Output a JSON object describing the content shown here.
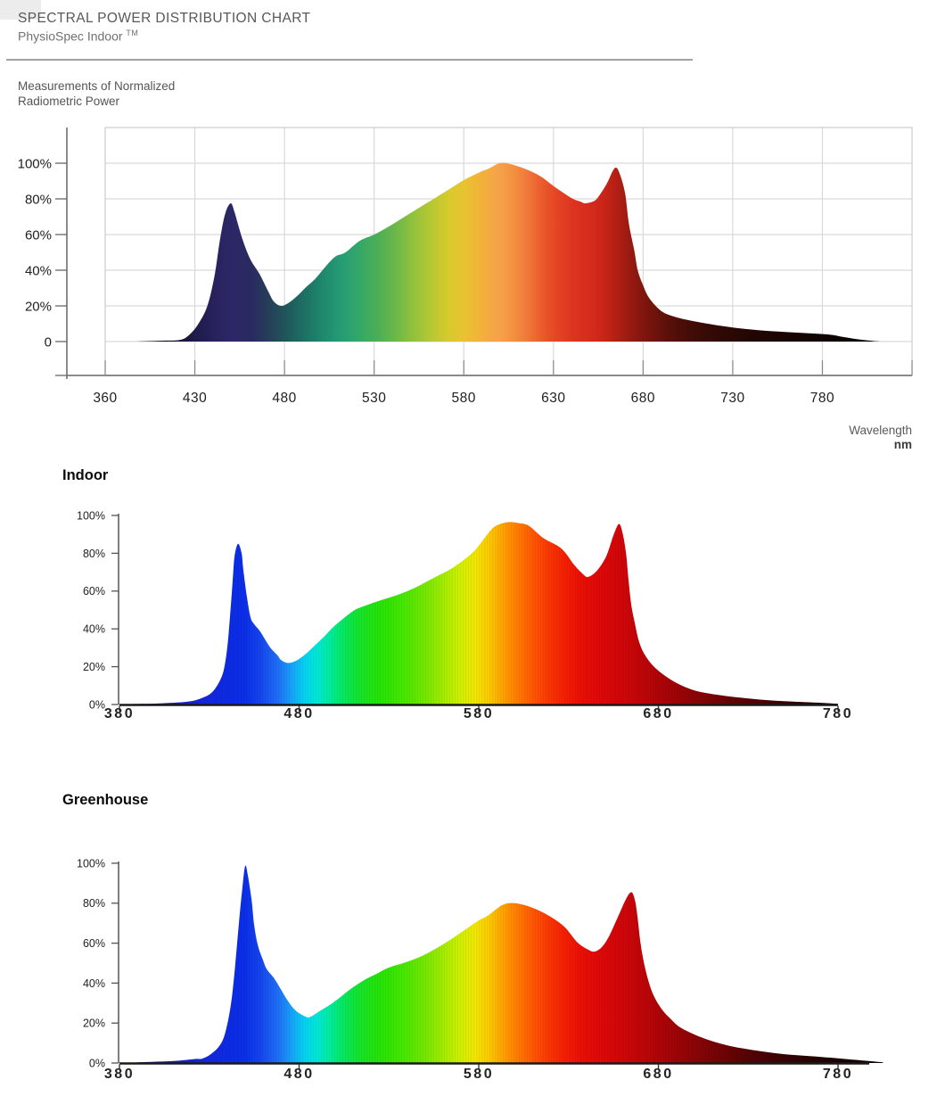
{
  "header": {
    "title": "SPECTRAL POWER DISTRIBUTION CHART",
    "subtitle": "PhysioSpec Indoor",
    "trademark": "TM",
    "note_line1": "Measurements of Normalized",
    "note_line2": "Radiometric Power",
    "wavelength_label": "Wavelength",
    "wavelength_unit": "nm"
  },
  "gradients": {
    "muted": [
      [
        384,
        "#0b0a10"
      ],
      [
        400,
        "#100e20"
      ],
      [
        418,
        "#171434"
      ],
      [
        432,
        "#201c4e"
      ],
      [
        445,
        "#2a2562"
      ],
      [
        452,
        "#2c2766"
      ],
      [
        462,
        "#292b60"
      ],
      [
        472,
        "#254058"
      ],
      [
        482,
        "#1f5a5c"
      ],
      [
        492,
        "#1d7264"
      ],
      [
        502,
        "#1f8a6e"
      ],
      [
        512,
        "#279c74"
      ],
      [
        522,
        "#35a867"
      ],
      [
        532,
        "#4cae56"
      ],
      [
        542,
        "#6cb848"
      ],
      [
        552,
        "#92c23c"
      ],
      [
        562,
        "#b8c832"
      ],
      [
        572,
        "#d8ca2e"
      ],
      [
        580,
        "#e8c32f"
      ],
      [
        590,
        "#f2b13a"
      ],
      [
        600,
        "#f6a14c"
      ],
      [
        608,
        "#f39040"
      ],
      [
        616,
        "#f0763a"
      ],
      [
        624,
        "#ea5a2c"
      ],
      [
        632,
        "#e44424"
      ],
      [
        642,
        "#dc3220"
      ],
      [
        652,
        "#d42a1c"
      ],
      [
        660,
        "#c42317"
      ],
      [
        668,
        "#a81d12"
      ],
      [
        676,
        "#8c1810"
      ],
      [
        684,
        "#74140c"
      ],
      [
        694,
        "#5a100a"
      ],
      [
        706,
        "#440c07"
      ],
      [
        720,
        "#320905"
      ],
      [
        736,
        "#250704"
      ],
      [
        754,
        "#1b0503"
      ],
      [
        775,
        "#120402"
      ],
      [
        795,
        "#0d0302"
      ],
      [
        812,
        "#0a0202"
      ]
    ],
    "vivid": [
      [
        380,
        "#150b42"
      ],
      [
        395,
        "#1b1488"
      ],
      [
        410,
        "#1a1db4"
      ],
      [
        425,
        "#1526d8"
      ],
      [
        440,
        "#0d2ae4"
      ],
      [
        450,
        "#0b2fe8"
      ],
      [
        458,
        "#1444ee"
      ],
      [
        468,
        "#1e6ef6"
      ],
      [
        476,
        "#16a4fa"
      ],
      [
        483,
        "#06d2f2"
      ],
      [
        490,
        "#00e8d8"
      ],
      [
        497,
        "#00ec9e"
      ],
      [
        505,
        "#06e85e"
      ],
      [
        514,
        "#16e428"
      ],
      [
        525,
        "#26e406"
      ],
      [
        538,
        "#46e800"
      ],
      [
        550,
        "#74e800"
      ],
      [
        560,
        "#a2ec00"
      ],
      [
        570,
        "#d2f000"
      ],
      [
        578,
        "#f2e600"
      ],
      [
        586,
        "#fdc800"
      ],
      [
        594,
        "#ff9f00"
      ],
      [
        602,
        "#ff7a00"
      ],
      [
        610,
        "#ff5802"
      ],
      [
        618,
        "#fb3a02"
      ],
      [
        627,
        "#f52104"
      ],
      [
        636,
        "#ec1006"
      ],
      [
        648,
        "#de0808"
      ],
      [
        660,
        "#cf0609"
      ],
      [
        672,
        "#bc0508"
      ],
      [
        685,
        "#a60407"
      ],
      [
        700,
        "#8c0406"
      ],
      [
        715,
        "#700305"
      ],
      [
        732,
        "#520204"
      ],
      [
        750,
        "#380203"
      ],
      [
        768,
        "#240102"
      ],
      [
        790,
        "#120101"
      ],
      [
        810,
        "#0c0101"
      ]
    ]
  },
  "chart_data": [
    {
      "id": "main",
      "type": "area",
      "title": "",
      "ylabel": "Normalized Radiometric Power (%)",
      "xlabel": "Wavelength nm",
      "grid": true,
      "ylim": [
        0,
        120
      ],
      "gradient": "muted",
      "y_ticks": [
        {
          "label": "100%",
          "value": 100
        },
        {
          "label": "80%",
          "value": 80
        },
        {
          "label": "60%",
          "value": 60
        },
        {
          "label": "40%",
          "value": 40
        },
        {
          "label": "20%",
          "value": 20
        },
        {
          "label": "0",
          "value": 0
        }
      ],
      "x_ticks": [
        {
          "label": "360",
          "nm": 360
        },
        {
          "label": "430",
          "nm": 430
        },
        {
          "label": "480",
          "nm": 480
        },
        {
          "label": "530",
          "nm": 530
        },
        {
          "label": "580",
          "nm": 580
        },
        {
          "label": "630",
          "nm": 630
        },
        {
          "label": "680",
          "nm": 680
        },
        {
          "label": "730",
          "nm": 730
        },
        {
          "label": "780",
          "nm": 780
        }
      ],
      "points": [
        [
          384,
          0
        ],
        [
          405,
          0.5
        ],
        [
          419,
          1
        ],
        [
          426,
          4
        ],
        [
          432,
          10
        ],
        [
          437,
          20
        ],
        [
          441,
          37
        ],
        [
          444,
          57
        ],
        [
          447,
          72
        ],
        [
          450,
          77.5
        ],
        [
          452,
          73
        ],
        [
          454,
          66
        ],
        [
          457,
          56
        ],
        [
          461,
          46
        ],
        [
          466,
          38
        ],
        [
          471,
          28
        ],
        [
          474,
          22.5
        ],
        [
          478,
          20
        ],
        [
          482,
          21.5
        ],
        [
          487,
          25.5
        ],
        [
          492,
          30.5
        ],
        [
          497,
          35
        ],
        [
          502,
          41
        ],
        [
          506,
          45.5
        ],
        [
          509,
          48
        ],
        [
          514,
          50
        ],
        [
          522,
          56.5
        ],
        [
          530,
          60
        ],
        [
          539,
          65
        ],
        [
          547,
          70
        ],
        [
          555,
          75
        ],
        [
          564,
          80.5
        ],
        [
          572,
          85.5
        ],
        [
          580,
          90.5
        ],
        [
          589,
          95
        ],
        [
          594,
          97
        ],
        [
          600,
          100
        ],
        [
          606,
          99.5
        ],
        [
          615,
          96.5
        ],
        [
          623,
          92.5
        ],
        [
          631,
          86.5
        ],
        [
          640,
          80.5
        ],
        [
          645,
          78.5
        ],
        [
          648,
          77.5
        ],
        [
          653,
          79
        ],
        [
          656,
          82.5
        ],
        [
          660,
          89
        ],
        [
          663,
          95.5
        ],
        [
          665,
          97.5
        ],
        [
          667,
          94
        ],
        [
          670,
          83
        ],
        [
          672,
          66.5
        ],
        [
          675,
          51.5
        ],
        [
          677,
          40
        ],
        [
          680,
          31.5
        ],
        [
          683,
          25
        ],
        [
          688,
          19
        ],
        [
          693,
          15.5
        ],
        [
          703,
          12.5
        ],
        [
          716,
          10
        ],
        [
          733,
          7.5
        ],
        [
          749,
          6
        ],
        [
          766,
          5
        ],
        [
          783,
          4
        ],
        [
          792,
          2.5
        ],
        [
          802,
          1
        ],
        [
          812,
          0
        ]
      ]
    },
    {
      "id": "indoor",
      "type": "area",
      "title": "Indoor",
      "ylabel": "Normalized Radiometric Power (%)",
      "xlabel": "Wavelength nm",
      "grid": false,
      "ylim": [
        0,
        100
      ],
      "gradient": "vivid",
      "y_ticks": [
        {
          "label": "100%",
          "value": 100
        },
        {
          "label": "80%",
          "value": 80
        },
        {
          "label": "60%",
          "value": 60
        },
        {
          "label": "40%",
          "value": 40
        },
        {
          "label": "20%",
          "value": 20
        },
        {
          "label": "0%",
          "value": 0
        }
      ],
      "x_ticks": [
        {
          "label": "380",
          "nm": 380
        },
        {
          "label": "480",
          "nm": 480
        },
        {
          "label": "580",
          "nm": 580
        },
        {
          "label": "680",
          "nm": 680
        },
        {
          "label": "780",
          "nm": 780
        }
      ],
      "points": [
        [
          388,
          0.3
        ],
        [
          401,
          0.5
        ],
        [
          418,
          1.5
        ],
        [
          426,
          3.5
        ],
        [
          431,
          6
        ],
        [
          435,
          11
        ],
        [
          438,
          18
        ],
        [
          440,
          30
        ],
        [
          441.5,
          46
        ],
        [
          443,
          65
        ],
        [
          444,
          78
        ],
        [
          446,
          85
        ],
        [
          448,
          80
        ],
        [
          449,
          71
        ],
        [
          451,
          56.5
        ],
        [
          453,
          46
        ],
        [
          455,
          42.5
        ],
        [
          458,
          39
        ],
        [
          461,
          34.5
        ],
        [
          464,
          30
        ],
        [
          468,
          26
        ],
        [
          470,
          23.5
        ],
        [
          474,
          22
        ],
        [
          479,
          23.5
        ],
        [
          484,
          27
        ],
        [
          489,
          31.5
        ],
        [
          494,
          36
        ],
        [
          499,
          41
        ],
        [
          504,
          45
        ],
        [
          508,
          48
        ],
        [
          512,
          50.5
        ],
        [
          519,
          53
        ],
        [
          525,
          55
        ],
        [
          535,
          58
        ],
        [
          545,
          62
        ],
        [
          555,
          67
        ],
        [
          565,
          72
        ],
        [
          575,
          79
        ],
        [
          580,
          84
        ],
        [
          584,
          89
        ],
        [
          588,
          93.5
        ],
        [
          592,
          95.5
        ],
        [
          597,
          96.5
        ],
        [
          602,
          96
        ],
        [
          608,
          94.5
        ],
        [
          616,
          88
        ],
        [
          626,
          82.5
        ],
        [
          633,
          74
        ],
        [
          638,
          69
        ],
        [
          641,
          67.5
        ],
        [
          646,
          71
        ],
        [
          651,
          78.5
        ],
        [
          655,
          89.5
        ],
        [
          658,
          95.5
        ],
        [
          660,
          91
        ],
        [
          662,
          80
        ],
        [
          663.5,
          64.5
        ],
        [
          665,
          52
        ],
        [
          667,
          42.5
        ],
        [
          669,
          34
        ],
        [
          672,
          27
        ],
        [
          677,
          20.5
        ],
        [
          684,
          15
        ],
        [
          692,
          10.5
        ],
        [
          702,
          7
        ],
        [
          716,
          4.7
        ],
        [
          729,
          3.3
        ],
        [
          745,
          2
        ],
        [
          764,
          1.2
        ],
        [
          780,
          0.4
        ]
      ]
    },
    {
      "id": "greenhouse",
      "type": "area",
      "title": "Greenhouse",
      "ylabel": "Normalized Radiometric Power (%)",
      "xlabel": "Wavelength nm",
      "grid": false,
      "ylim": [
        0,
        100
      ],
      "gradient": "vivid",
      "y_ticks": [
        {
          "label": "100%",
          "value": 100
        },
        {
          "label": "80%",
          "value": 80
        },
        {
          "label": "60%",
          "value": 60
        },
        {
          "label": "40%",
          "value": 40
        },
        {
          "label": "20%",
          "value": 20
        },
        {
          "label": "0%",
          "value": 0
        }
      ],
      "x_ticks": [
        {
          "label": "380",
          "nm": 380
        },
        {
          "label": "480",
          "nm": 480
        },
        {
          "label": "580",
          "nm": 580
        },
        {
          "label": "680",
          "nm": 680
        },
        {
          "label": "780",
          "nm": 780
        }
      ],
      "points": [
        [
          390,
          0.3
        ],
        [
          410,
          1
        ],
        [
          422,
          2
        ],
        [
          426,
          2.2
        ],
        [
          431,
          4.5
        ],
        [
          436,
          9
        ],
        [
          439,
          15.6
        ],
        [
          442,
          29
        ],
        [
          444,
          45
        ],
        [
          445.5,
          60
        ],
        [
          447,
          75
        ],
        [
          448.5,
          88
        ],
        [
          450,
          98.7
        ],
        [
          451.5,
          93.7
        ],
        [
          453.5,
          82
        ],
        [
          455,
          69
        ],
        [
          457,
          59
        ],
        [
          460,
          51.3
        ],
        [
          462,
          47
        ],
        [
          466,
          42.5
        ],
        [
          470,
          36.6
        ],
        [
          474,
          30.8
        ],
        [
          478,
          26.3
        ],
        [
          483,
          23.5
        ],
        [
          486,
          23
        ],
        [
          492,
          26.3
        ],
        [
          497,
          29
        ],
        [
          503,
          33
        ],
        [
          508,
          36.6
        ],
        [
          513,
          39.7
        ],
        [
          518,
          42.4
        ],
        [
          523,
          44.6
        ],
        [
          528,
          47
        ],
        [
          533,
          48.7
        ],
        [
          538,
          50
        ],
        [
          547,
          53
        ],
        [
          555,
          56.7
        ],
        [
          563,
          61
        ],
        [
          572,
          66.5
        ],
        [
          580,
          71.4
        ],
        [
          585,
          73.7
        ],
        [
          593,
          79
        ],
        [
          600,
          80
        ],
        [
          610,
          77.7
        ],
        [
          620,
          73.2
        ],
        [
          628,
          67.9
        ],
        [
          635,
          60.3
        ],
        [
          641,
          56.7
        ],
        [
          644.5,
          55.8
        ],
        [
          648.5,
          58
        ],
        [
          652.5,
          63.4
        ],
        [
          657.5,
          73.2
        ],
        [
          662,
          82.1
        ],
        [
          665,
          85.5
        ],
        [
          667,
          81.3
        ],
        [
          668.5,
          72.3
        ],
        [
          670,
          60.3
        ],
        [
          672,
          50
        ],
        [
          674.5,
          41
        ],
        [
          677.5,
          33.5
        ],
        [
          682,
          26.8
        ],
        [
          687,
          21.9
        ],
        [
          692,
          17.9
        ],
        [
          700,
          14.3
        ],
        [
          709,
          11.2
        ],
        [
          720,
          8.5
        ],
        [
          734,
          6.3
        ],
        [
          749,
          4.5
        ],
        [
          765,
          3.4
        ],
        [
          782,
          2.2
        ],
        [
          797,
          1
        ],
        [
          805,
          0.3
        ]
      ]
    }
  ]
}
